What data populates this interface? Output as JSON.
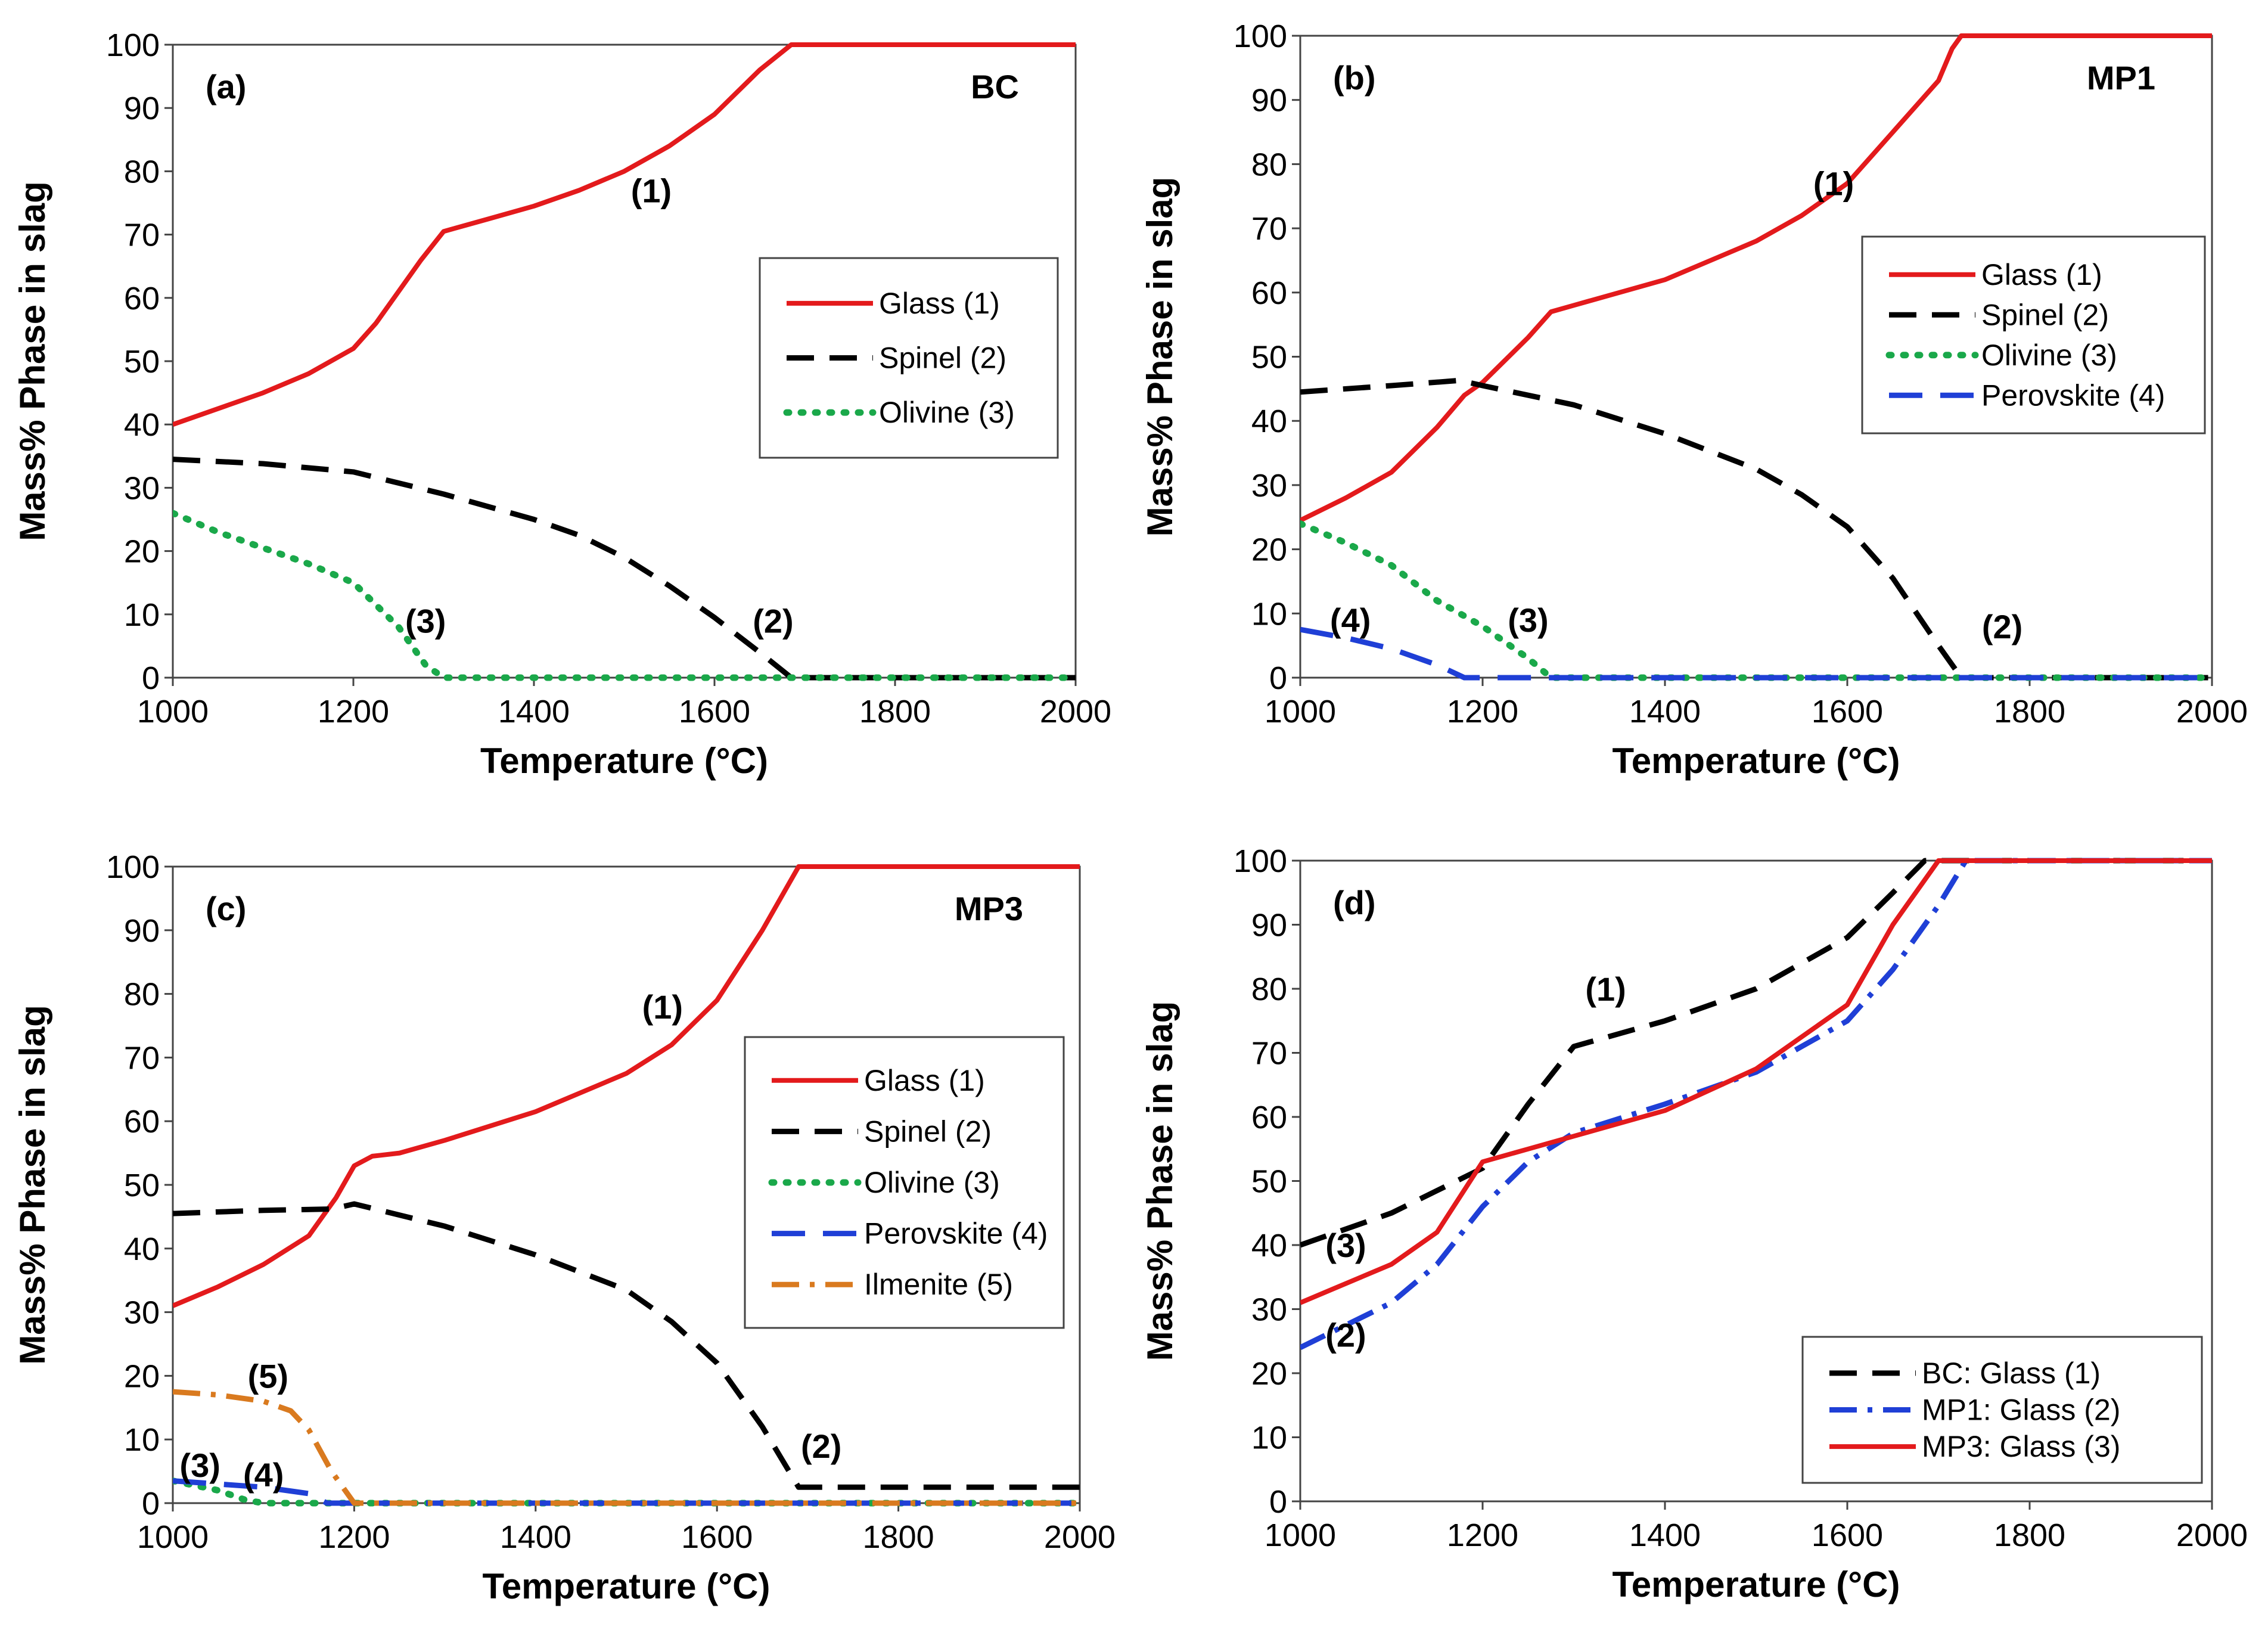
{
  "x_label": "Temperature (°C)",
  "y_label": "Mass% Phase in slag",
  "chart_data": [
    {
      "type": "line",
      "panel": "(a)",
      "label": "BC",
      "xlabel": "Temperature (°C)",
      "ylabel": "Mass% Phase in slag",
      "xlim": [
        1000,
        2000
      ],
      "ylim": [
        0,
        100
      ],
      "xticks": [
        "1000",
        "1200",
        "1400",
        "1600",
        "1800",
        "2000"
      ],
      "yticks": [
        "0",
        "10",
        "20",
        "30",
        "40",
        "50",
        "60",
        "70",
        "80",
        "90",
        "100"
      ],
      "legend_position": "right",
      "series": [
        {
          "name": "Glass (1)",
          "color": "#e31a1c",
          "style": "solid",
          "x": [
            1000,
            1100,
            1150,
            1200,
            1225,
            1250,
            1275,
            1300,
            1350,
            1400,
            1450,
            1500,
            1550,
            1600,
            1650,
            1685,
            1700,
            2000
          ],
          "y": [
            40,
            45,
            48,
            52,
            56,
            61,
            66,
            70.5,
            72.5,
            74.5,
            77,
            80,
            84,
            89,
            96,
            100,
            100,
            100
          ]
        },
        {
          "name": "Spinel (2)",
          "color": "#000000",
          "style": "dash",
          "x": [
            1000,
            1100,
            1200,
            1300,
            1400,
            1450,
            1500,
            1550,
            1600,
            1650,
            1685,
            1700,
            2000
          ],
          "y": [
            34.5,
            33.8,
            32.5,
            29,
            25,
            22.5,
            19,
            14.5,
            9.5,
            4,
            0,
            0,
            0
          ]
        },
        {
          "name": "Olivine (3)",
          "color": "#1aa84a",
          "style": "dot",
          "x": [
            1000,
            1050,
            1100,
            1150,
            1200,
            1250,
            1280,
            1300,
            2000
          ],
          "y": [
            26,
            23,
            20.5,
            18,
            15,
            8,
            2,
            0,
            0
          ]
        }
      ],
      "annotations": [
        {
          "text": "(1)",
          "x": 1530,
          "y": 77
        },
        {
          "text": "(3)",
          "x": 1280,
          "y": 9
        },
        {
          "text": "(2)",
          "x": 1665,
          "y": 9
        }
      ]
    },
    {
      "type": "line",
      "panel": "(b)",
      "label": "MP1",
      "xlabel": "Temperature (°C)",
      "ylabel": "Mass% Phase in slag",
      "xlim": [
        1000,
        2000
      ],
      "ylim": [
        0,
        100
      ],
      "xticks": [
        "1000",
        "1200",
        "1400",
        "1600",
        "1800",
        "2000"
      ],
      "yticks": [
        "0",
        "10",
        "20",
        "30",
        "40",
        "50",
        "60",
        "70",
        "80",
        "90",
        "100"
      ],
      "legend_position": "right",
      "series": [
        {
          "name": "Glass (1)",
          "color": "#e31a1c",
          "style": "solid",
          "x": [
            1000,
            1050,
            1100,
            1150,
            1180,
            1200,
            1250,
            1275,
            1300,
            1400,
            1500,
            1550,
            1600,
            1650,
            1700,
            1715,
            1725,
            2000
          ],
          "y": [
            24.5,
            28,
            32,
            39,
            44,
            46,
            53,
            57,
            58,
            62,
            68,
            72,
            77,
            85,
            93,
            98,
            100,
            100
          ]
        },
        {
          "name": "Spinel (2)",
          "color": "#000000",
          "style": "dash",
          "x": [
            1000,
            1100,
            1175,
            1200,
            1300,
            1400,
            1500,
            1550,
            1600,
            1650,
            1700,
            1725,
            2000
          ],
          "y": [
            44.5,
            45.5,
            46.3,
            45.5,
            42.5,
            38,
            32.5,
            28.5,
            23.5,
            15.5,
            5,
            0,
            0
          ]
        },
        {
          "name": "Olivine (3)",
          "color": "#1aa84a",
          "style": "dot",
          "x": [
            1000,
            1050,
            1100,
            1150,
            1200,
            1250,
            1275,
            2000
          ],
          "y": [
            24,
            21,
            17.5,
            12,
            8,
            3,
            0,
            0
          ]
        },
        {
          "name": "Perovskite (4)",
          "color": "#1f3fd6",
          "style": "longdash",
          "x": [
            1000,
            1050,
            1100,
            1150,
            1180,
            2000
          ],
          "y": [
            7.5,
            6.2,
            4.5,
            2,
            0,
            0
          ]
        }
      ],
      "annotations": [
        {
          "text": "(1)",
          "x": 1585,
          "y": 77
        },
        {
          "text": "(4)",
          "x": 1055,
          "y": 9
        },
        {
          "text": "(3)",
          "x": 1250,
          "y": 9
        },
        {
          "text": "(2)",
          "x": 1770,
          "y": 8
        }
      ]
    },
    {
      "type": "line",
      "panel": "(c)",
      "label": "MP3",
      "xlabel": "Temperature (°C)",
      "ylabel": "Mass% Phase in slag",
      "xlim": [
        1000,
        2000
      ],
      "ylim": [
        0,
        100
      ],
      "xticks": [
        "1000",
        "1200",
        "1400",
        "1600",
        "1800",
        "2000"
      ],
      "yticks": [
        "0",
        "10",
        "20",
        "30",
        "40",
        "50",
        "60",
        "70",
        "80",
        "90",
        "100"
      ],
      "legend_position": "right",
      "series": [
        {
          "name": "Glass (1)",
          "color": "#e31a1c",
          "style": "solid",
          "x": [
            1000,
            1050,
            1100,
            1150,
            1180,
            1200,
            1220,
            1250,
            1300,
            1400,
            1500,
            1550,
            1600,
            1650,
            1690,
            1700,
            2000
          ],
          "y": [
            31,
            34,
            37.5,
            42,
            48,
            53,
            54.5,
            55,
            57,
            61.5,
            67.5,
            72,
            79,
            90,
            100,
            100,
            100
          ]
        },
        {
          "name": "Spinel (2)",
          "color": "#000000",
          "style": "dash",
          "x": [
            1000,
            1100,
            1175,
            1200,
            1300,
            1400,
            1500,
            1550,
            1600,
            1650,
            1690,
            2000
          ],
          "y": [
            45.5,
            46,
            46.2,
            47,
            43.5,
            39,
            33.5,
            28.5,
            22,
            12,
            2.5,
            2.5
          ]
        },
        {
          "name": "Olivine (3)",
          "color": "#1aa84a",
          "style": "dot",
          "x": [
            1000,
            1050,
            1080,
            1100,
            2000
          ],
          "y": [
            3.5,
            2,
            0.5,
            0,
            0
          ]
        },
        {
          "name": "Perovskite (4)",
          "color": "#1f3fd6",
          "style": "longdash",
          "x": [
            1000,
            1100,
            1150,
            1170,
            2000
          ],
          "y": [
            3.5,
            2.5,
            1.5,
            0,
            0
          ]
        },
        {
          "name": "Ilmenite (5)",
          "color": "#d97a1f",
          "style": "dashdot",
          "x": [
            1000,
            1050,
            1100,
            1130,
            1150,
            1175,
            1200,
            2000
          ],
          "y": [
            17.5,
            17,
            16,
            14.5,
            11.5,
            5,
            0,
            0
          ]
        }
      ],
      "annotations": [
        {
          "text": "(1)",
          "x": 1540,
          "y": 78
        },
        {
          "text": "(5)",
          "x": 1105,
          "y": 20
        },
        {
          "text": "(3)",
          "x": 1030,
          "y": 6
        },
        {
          "text": "(4)",
          "x": 1100,
          "y": 4.5
        },
        {
          "text": "(2)",
          "x": 1715,
          "y": 9
        }
      ]
    },
    {
      "type": "line",
      "panel": "(d)",
      "label": "",
      "xlabel": "Temperature (°C)",
      "ylabel": "Mass% Phase in slag",
      "xlim": [
        1000,
        2000
      ],
      "ylim": [
        0,
        100
      ],
      "xticks": [
        "1000",
        "1200",
        "1400",
        "1600",
        "1800",
        "2000"
      ],
      "yticks": [
        "0",
        "10",
        "20",
        "30",
        "40",
        "50",
        "60",
        "70",
        "80",
        "90",
        "100"
      ],
      "legend_position": "bottom-right",
      "series": [
        {
          "name": "BC: Glass (1)",
          "color": "#000000",
          "style": "dash",
          "x": [
            1000,
            1100,
            1200,
            1250,
            1300,
            1400,
            1500,
            1600,
            1650,
            1685,
            1700,
            2000
          ],
          "y": [
            40,
            45,
            52,
            62,
            71,
            75,
            80,
            88,
            95,
            100,
            100,
            100
          ]
        },
        {
          "name": "MP1: Glass (2)",
          "color": "#1f3fd6",
          "style": "dashdot",
          "x": [
            1000,
            1100,
            1150,
            1200,
            1250,
            1300,
            1400,
            1500,
            1600,
            1650,
            1700,
            1730,
            2000
          ],
          "y": [
            24,
            31,
            37,
            46,
            53,
            57.5,
            62,
            67,
            75,
            83,
            93,
            100,
            100
          ]
        },
        {
          "name": "MP3: Glass (3)",
          "color": "#e31a1c",
          "style": "solid",
          "x": [
            1000,
            1100,
            1150,
            1200,
            1250,
            1300,
            1400,
            1500,
            1600,
            1650,
            1700,
            2000
          ],
          "y": [
            31,
            37,
            42,
            53,
            55,
            57,
            61,
            67.5,
            77.5,
            90,
            100,
            100
          ]
        }
      ],
      "annotations": [
        {
          "text": "(1)",
          "x": 1335,
          "y": 80
        },
        {
          "text": "(3)",
          "x": 1050,
          "y": 40
        },
        {
          "text": "(2)",
          "x": 1050,
          "y": 26
        }
      ]
    }
  ]
}
